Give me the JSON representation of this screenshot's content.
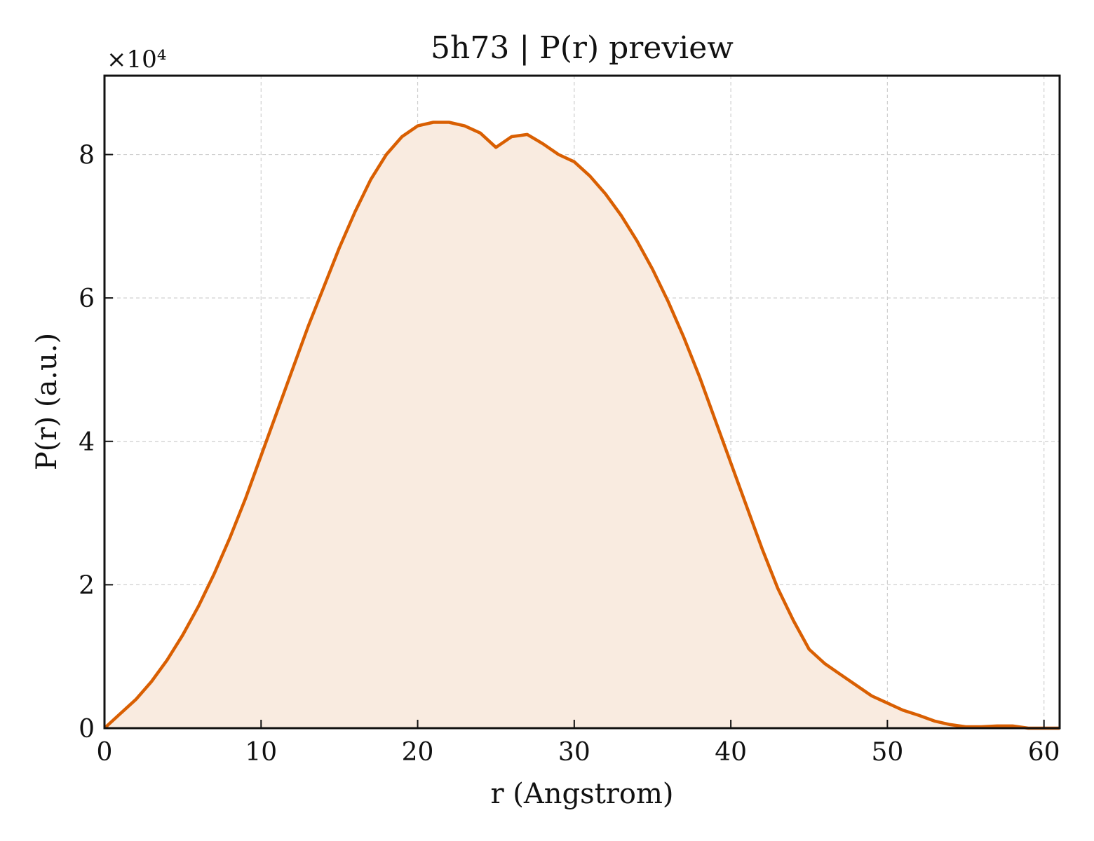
{
  "chart_data": {
    "type": "area",
    "title": "5h73 | P(r) preview",
    "xlabel": "r (Angstrom)",
    "ylabel": "P(r) (a.u.)",
    "y_multiplier_label": "×10⁴",
    "xlim": [
      0,
      61
    ],
    "ylim": [
      0,
      9.1
    ],
    "x_ticks": [
      0,
      10,
      20,
      30,
      40,
      50,
      60
    ],
    "y_ticks": [
      0,
      2,
      4,
      6,
      8
    ],
    "grid": true,
    "legend": "none",
    "line_color": "#d95f02",
    "fill_color": "#f9ebe0",
    "series": [
      {
        "x": [
          0,
          1,
          2,
          3,
          4,
          5,
          6,
          7,
          8,
          9,
          10,
          11,
          12,
          13,
          14,
          15,
          16,
          17,
          18,
          19,
          20,
          21,
          22,
          23,
          24,
          25,
          26,
          27,
          28,
          29,
          30,
          31,
          32,
          33,
          34,
          35,
          36,
          37,
          38,
          39,
          40,
          41,
          42,
          43,
          44,
          45,
          46,
          47,
          48,
          49,
          50,
          51,
          52,
          53,
          54,
          55,
          56,
          57,
          58,
          59,
          60,
          61
        ],
        "y": [
          0.0,
          0.2,
          0.4,
          0.65,
          0.95,
          1.3,
          1.7,
          2.15,
          2.65,
          3.2,
          3.8,
          4.4,
          5.0,
          5.6,
          6.15,
          6.7,
          7.2,
          7.65,
          8.0,
          8.25,
          8.4,
          8.45,
          8.45,
          8.4,
          8.3,
          8.1,
          8.25,
          8.28,
          8.15,
          8.0,
          7.9,
          7.7,
          7.45,
          7.15,
          6.8,
          6.4,
          5.95,
          5.45,
          4.9,
          4.3,
          3.7,
          3.1,
          2.5,
          1.95,
          1.5,
          1.1,
          0.9,
          0.75,
          0.6,
          0.45,
          0.35,
          0.25,
          0.18,
          0.1,
          0.05,
          0.02,
          0.02,
          0.03,
          0.03,
          0.0,
          0.0,
          0.0
        ]
      }
    ]
  }
}
